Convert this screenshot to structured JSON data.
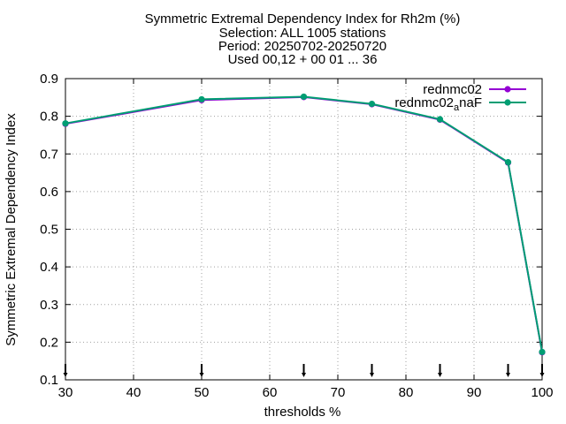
{
  "chart_data": {
    "type": "line",
    "title_lines": [
      "Symmetric Extremal Dependency Index  for Rh2m (%)",
      "Selection: ALL    1005 stations",
      "Period: 20250702-20250720",
      "Used 00,12 + 00 01 ... 36"
    ],
    "xlabel": "thresholds %",
    "ylabel": "Symmetric Extremal Dependency Index",
    "xlim": [
      30,
      100
    ],
    "ylim": [
      0.1,
      0.9
    ],
    "xticks": [
      "30",
      "40",
      "50",
      "60",
      "70",
      "80",
      "90",
      "100"
    ],
    "yticks": [
      "0.1",
      "0.2",
      "0.3",
      "0.4",
      "0.5",
      "0.6",
      "0.7",
      "0.8",
      "0.9"
    ],
    "grid": true,
    "legend_position": "top-right",
    "x": [
      30,
      50,
      65,
      75,
      85,
      95,
      100
    ],
    "series": [
      {
        "name": "rednmc02",
        "name_sub": "",
        "name_suffix": "",
        "color": "#9400d3",
        "values": [
          0.78,
          0.843,
          0.851,
          0.832,
          0.791,
          0.677,
          0.173
        ]
      },
      {
        "name": "rednmc02",
        "name_sub": "a",
        "name_suffix": "naF",
        "color": "#009e73",
        "values": [
          0.781,
          0.845,
          0.852,
          0.833,
          0.792,
          0.678,
          0.174
        ]
      }
    ],
    "markers_bottom": [
      30,
      50,
      65,
      75,
      85,
      95,
      100
    ]
  }
}
